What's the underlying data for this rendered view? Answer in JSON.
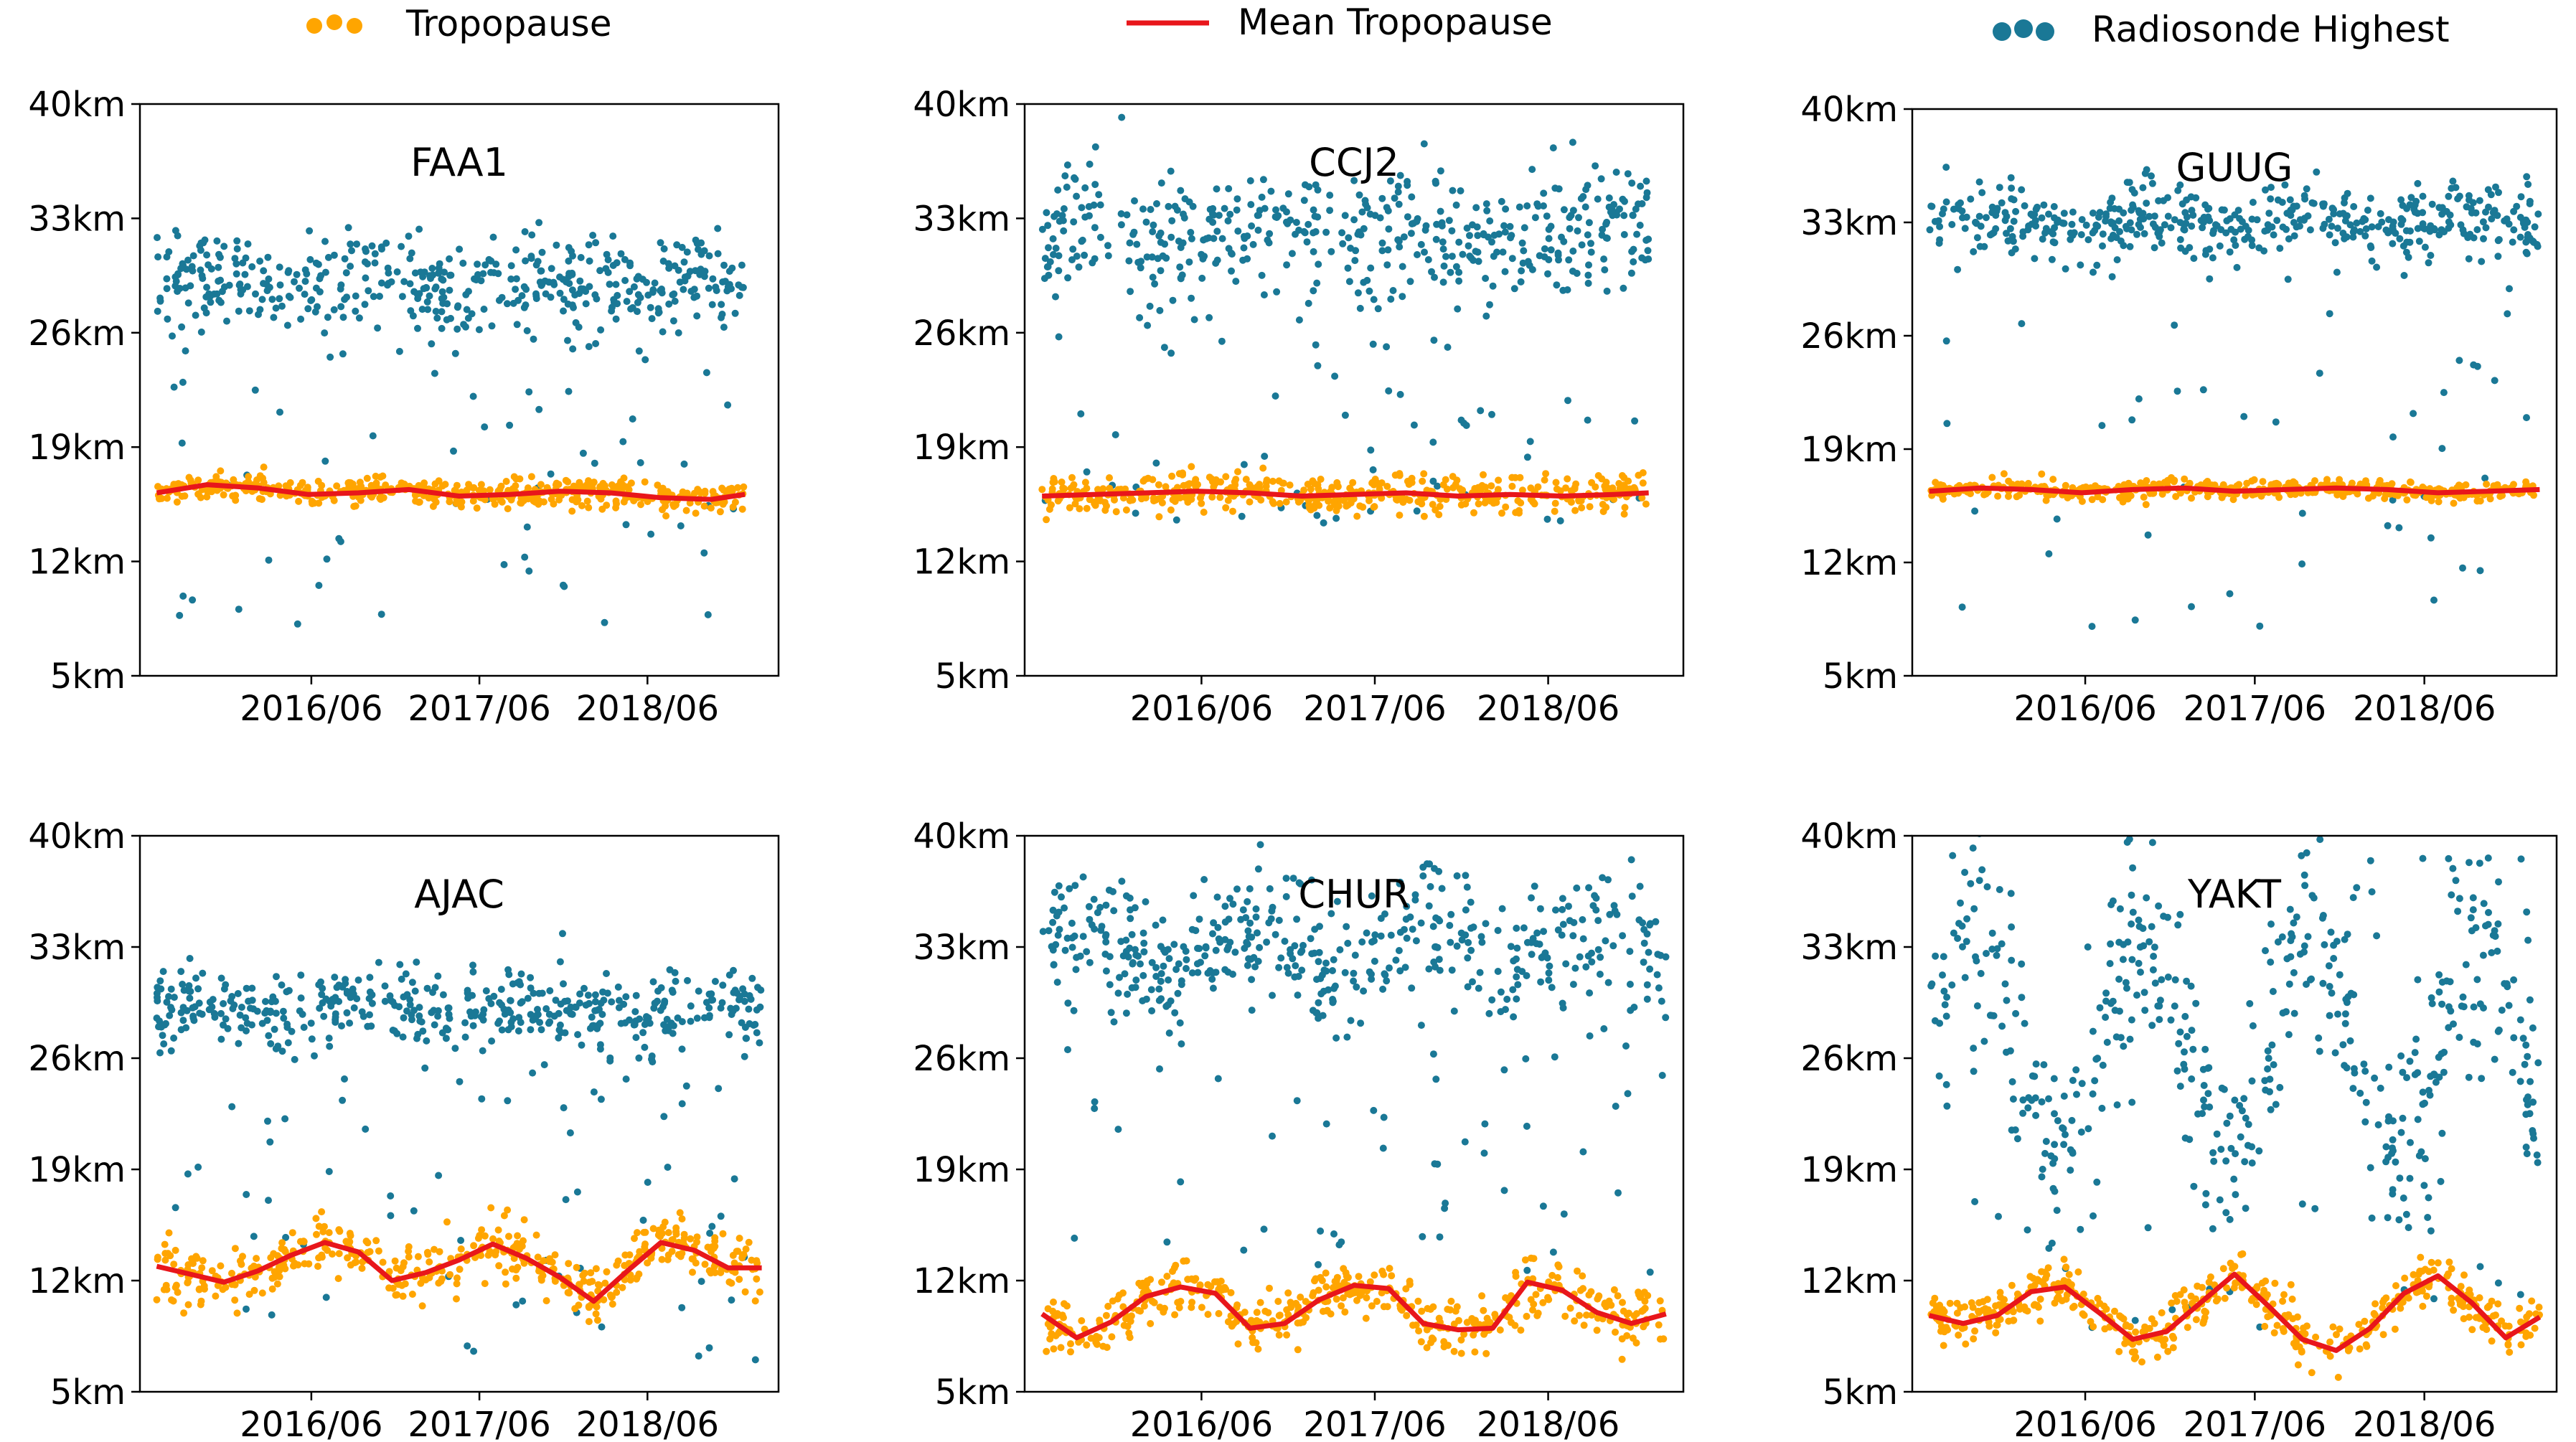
{
  "legend": {
    "tropopause": {
      "label": "Tropopause",
      "color": "#FFA500"
    },
    "mean": {
      "label": "Mean Tropopause",
      "color": "#E8161B"
    },
    "radiosonde": {
      "label": "Radiosonde Highest",
      "color": "#1A7896"
    }
  },
  "y_ticks": [
    {
      "value": 40,
      "label": "40km"
    },
    {
      "value": 33,
      "label": "33km"
    },
    {
      "value": 26,
      "label": "26km"
    },
    {
      "value": 19,
      "label": "19km"
    },
    {
      "value": 12,
      "label": "12km"
    },
    {
      "value": 5,
      "label": "5km"
    }
  ],
  "x_ticks": [
    {
      "value": 2016.42,
      "label": "2016/06"
    },
    {
      "value": 2017.42,
      "label": "2017/06"
    },
    {
      "value": 2018.42,
      "label": "2018/06"
    }
  ],
  "chart_data": [
    {
      "type": "scatter",
      "title": "FAA1",
      "xlim": [
        2015.4,
        2019.2
      ],
      "ylim": [
        5,
        40
      ],
      "series": [
        {
          "name": "Tropopause",
          "center": 16.2,
          "amp": 0.3,
          "spread": 0.6
        },
        {
          "name": "Mean Tropopause",
          "x": [
            2015.5,
            2015.8,
            2016.1,
            2016.4,
            2016.7,
            2017.0,
            2017.3,
            2017.6,
            2017.9,
            2018.2,
            2018.5,
            2018.8,
            2019.0
          ],
          "y": [
            16.2,
            16.7,
            16.5,
            16.1,
            16.2,
            16.4,
            16.0,
            16.1,
            16.3,
            16.2,
            15.9,
            15.8,
            16.1
          ]
        },
        {
          "name": "Radiosonde Highest",
          "center": 29,
          "amp": 0.6,
          "spread": 1.4,
          "scatter_low": 8,
          "scatter_high": 31
        }
      ]
    },
    {
      "type": "scatter",
      "title": "CCJ2",
      "xlim": [
        2015.4,
        2019.2
      ],
      "ylim": [
        5,
        40
      ],
      "series": [
        {
          "name": "Tropopause",
          "center": 16.1,
          "amp": 0.2,
          "spread": 0.8
        },
        {
          "name": "Mean Tropopause",
          "x": [
            2015.5,
            2015.8,
            2016.1,
            2016.4,
            2016.7,
            2017.0,
            2017.3,
            2017.6,
            2017.9,
            2018.2,
            2018.5,
            2018.8,
            2019.0
          ],
          "y": [
            16.0,
            16.1,
            16.2,
            16.3,
            16.2,
            16.0,
            16.1,
            16.2,
            16.0,
            16.1,
            16.0,
            16.1,
            16.2
          ]
        },
        {
          "name": "Radiosonde Highest",
          "center": 32,
          "amp": 0.6,
          "spread": 2.0,
          "scatter_low": 14,
          "scatter_high": 36
        }
      ]
    },
    {
      "type": "scatter",
      "title": "GUUG",
      "xlim": [
        2015.4,
        2019.2
      ],
      "ylim": [
        5,
        40
      ],
      "series": [
        {
          "name": "Tropopause",
          "center": 16.5,
          "amp": 0.2,
          "spread": 0.4
        },
        {
          "name": "Mean Tropopause",
          "x": [
            2015.5,
            2015.8,
            2016.1,
            2016.4,
            2016.7,
            2017.0,
            2017.3,
            2017.6,
            2017.9,
            2018.2,
            2018.5,
            2018.8,
            2019.1
          ],
          "y": [
            16.4,
            16.6,
            16.5,
            16.3,
            16.5,
            16.6,
            16.4,
            16.5,
            16.6,
            16.5,
            16.3,
            16.4,
            16.5
          ]
        },
        {
          "name": "Radiosonde Highest",
          "center": 33,
          "amp": 0.5,
          "spread": 1.1,
          "scatter_low": 8,
          "scatter_high": 35
        }
      ]
    },
    {
      "type": "scatter",
      "title": "AJAC",
      "xlim": [
        2015.4,
        2019.2
      ],
      "ylim": [
        5,
        40
      ],
      "series": [
        {
          "name": "Tropopause",
          "center": 12.8,
          "amp": 1.4,
          "spread": 1.2
        },
        {
          "name": "Mean Tropopause",
          "x": [
            2015.5,
            2015.7,
            2015.9,
            2016.1,
            2016.3,
            2016.5,
            2016.7,
            2016.9,
            2017.1,
            2017.3,
            2017.5,
            2017.7,
            2017.9,
            2018.1,
            2018.3,
            2018.5,
            2018.7,
            2018.9,
            2019.1
          ],
          "y": [
            12.9,
            12.4,
            11.9,
            12.6,
            13.6,
            14.4,
            13.8,
            12.0,
            12.5,
            13.3,
            14.3,
            13.4,
            12.2,
            10.7,
            12.6,
            14.4,
            13.9,
            12.8,
            12.8
          ]
        },
        {
          "name": "Radiosonde Highest",
          "center": 29,
          "amp": 0.6,
          "spread": 1.2,
          "scatter_low": 7,
          "scatter_high": 31
        }
      ]
    },
    {
      "type": "scatter",
      "title": "CHUR",
      "xlim": [
        2015.4,
        2019.2
      ],
      "ylim": [
        5,
        40
      ],
      "series": [
        {
          "name": "Tropopause",
          "center": 9.8,
          "amp": 1.8,
          "spread": 1.2
        },
        {
          "name": "Mean Tropopause",
          "x": [
            2015.5,
            2015.7,
            2015.9,
            2016.1,
            2016.3,
            2016.5,
            2016.7,
            2016.9,
            2017.1,
            2017.3,
            2017.5,
            2017.7,
            2017.9,
            2018.1,
            2018.3,
            2018.5,
            2018.7,
            2018.9,
            2019.1
          ],
          "y": [
            9.9,
            8.4,
            9.4,
            11.0,
            11.6,
            11.2,
            9.0,
            9.3,
            10.8,
            11.7,
            11.5,
            9.3,
            8.9,
            9.0,
            11.9,
            11.4,
            10.0,
            9.3,
            9.9
          ]
        },
        {
          "name": "Radiosonde Highest",
          "center": 33,
          "amp": 1.5,
          "spread": 2.0,
          "scatter_low": 12,
          "scatter_high": 37
        }
      ]
    },
    {
      "type": "scatter",
      "title": "YAKT",
      "xlim": [
        2015.4,
        2019.2
      ],
      "ylim": [
        5,
        40
      ],
      "series": [
        {
          "name": "Tropopause",
          "center": 10,
          "amp": 1.8,
          "spread": 1.1
        },
        {
          "name": "Mean Tropopause",
          "x": [
            2015.5,
            2015.7,
            2015.9,
            2016.1,
            2016.3,
            2016.5,
            2016.7,
            2016.9,
            2017.1,
            2017.3,
            2017.5,
            2017.7,
            2017.9,
            2018.1,
            2018.3,
            2018.5,
            2018.7,
            2018.9,
            2019.1
          ],
          "y": [
            9.8,
            9.3,
            9.8,
            11.3,
            11.6,
            10.0,
            8.3,
            8.8,
            10.6,
            12.4,
            10.4,
            8.3,
            7.6,
            9.0,
            11.2,
            12.3,
            10.6,
            8.4,
            9.7
          ]
        },
        {
          "name": "Radiosonde Highest",
          "center": 27,
          "amp": 7,
          "spread": 3.5,
          "scatter_low": 9,
          "scatter_high": 39
        }
      ]
    }
  ]
}
